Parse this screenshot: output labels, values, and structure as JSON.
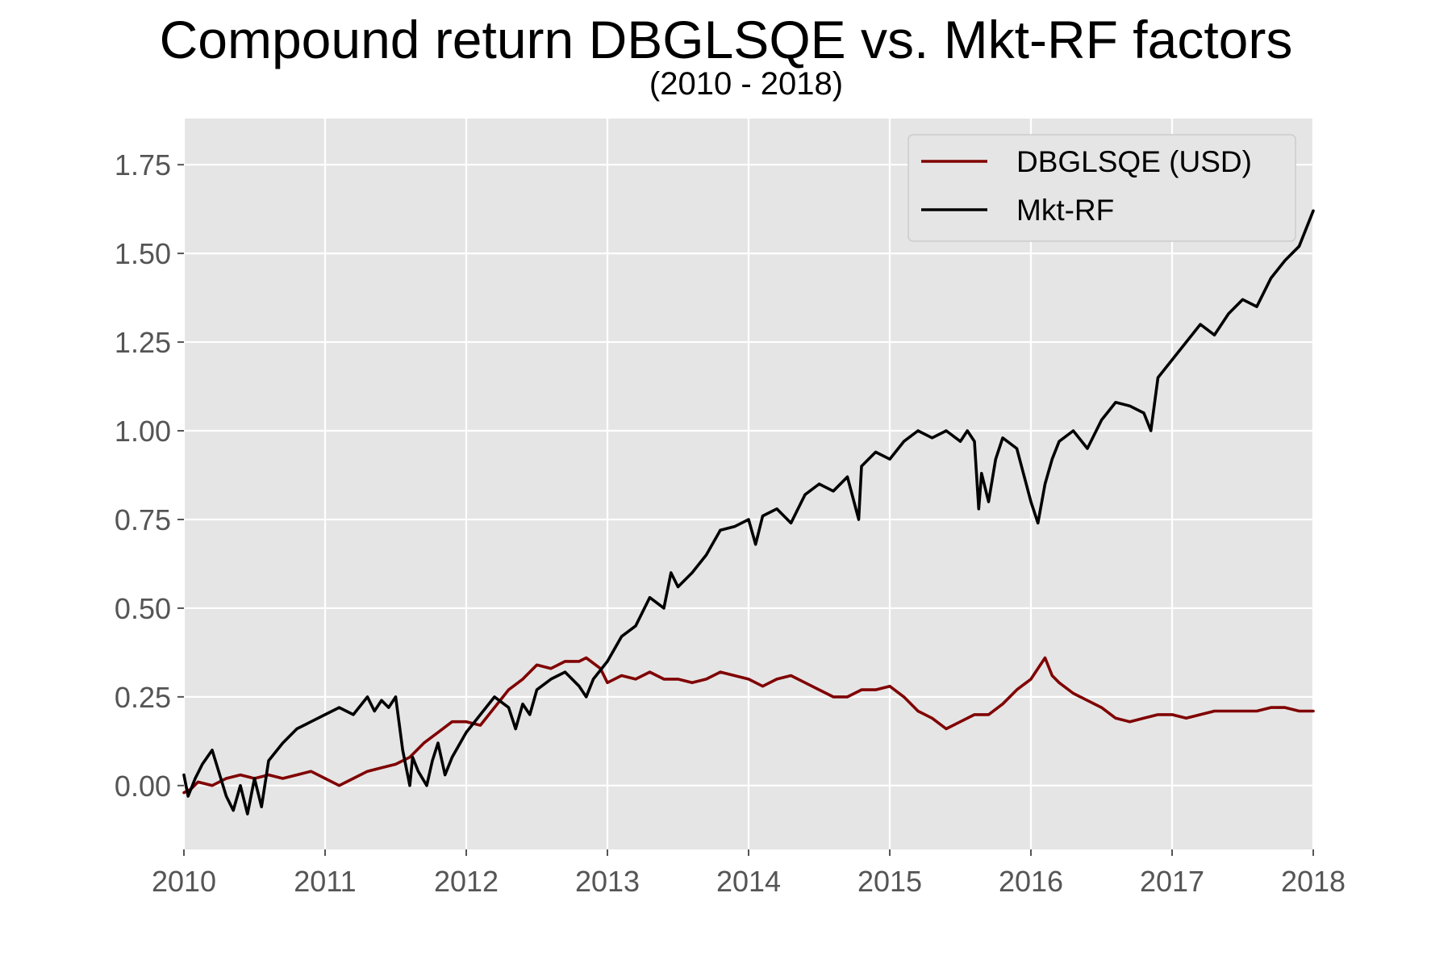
{
  "chart_data": {
    "type": "line",
    "title": "Compound return DBGLSQE vs. Mkt-RF factors",
    "subtitle": "(2010 - 2018)",
    "xlabel": "",
    "ylabel": "",
    "xlim": [
      2010,
      2018
    ],
    "ylim": [
      -0.18,
      1.88
    ],
    "x_ticks": [
      2010,
      2011,
      2012,
      2013,
      2014,
      2015,
      2016,
      2017,
      2018
    ],
    "x_tick_labels": [
      "2010",
      "2011",
      "2012",
      "2013",
      "2014",
      "2015",
      "2016",
      "2017",
      "2018"
    ],
    "y_ticks": [
      0.0,
      0.25,
      0.5,
      0.75,
      1.0,
      1.25,
      1.5,
      1.75
    ],
    "y_tick_labels": [
      "0.00",
      "0.25",
      "0.50",
      "0.75",
      "1.00",
      "1.25",
      "1.50",
      "1.75"
    ],
    "grid": true,
    "legend_position": "top-right",
    "colors": {
      "plot_background": "#e5e5e5",
      "grid": "#ffffff",
      "tick_label": "#555555",
      "legend_background": "#e5e5e5",
      "legend_border": "#cccccc"
    },
    "series": [
      {
        "name": "DBGLSQE (USD)",
        "color": "#800000",
        "x": [
          2010.0,
          2010.05,
          2010.1,
          2010.2,
          2010.3,
          2010.4,
          2010.5,
          2010.6,
          2010.7,
          2010.8,
          2010.9,
          2011.0,
          2011.1,
          2011.2,
          2011.3,
          2011.4,
          2011.5,
          2011.6,
          2011.7,
          2011.8,
          2011.9,
          2012.0,
          2012.1,
          2012.2,
          2012.3,
          2012.4,
          2012.5,
          2012.6,
          2012.7,
          2012.8,
          2012.85,
          2012.95,
          2013.0,
          2013.1,
          2013.2,
          2013.3,
          2013.4,
          2013.5,
          2013.6,
          2013.7,
          2013.8,
          2013.9,
          2014.0,
          2014.1,
          2014.2,
          2014.3,
          2014.4,
          2014.5,
          2014.6,
          2014.7,
          2014.8,
          2014.9,
          2015.0,
          2015.1,
          2015.2,
          2015.3,
          2015.4,
          2015.5,
          2015.6,
          2015.7,
          2015.8,
          2015.9,
          2016.0,
          2016.05,
          2016.1,
          2016.15,
          2016.2,
          2016.3,
          2016.4,
          2016.5,
          2016.6,
          2016.7,
          2016.8,
          2016.9,
          2017.0,
          2017.1,
          2017.2,
          2017.3,
          2017.4,
          2017.5,
          2017.6,
          2017.7,
          2017.8,
          2017.9,
          2018.0
        ],
        "y": [
          -0.02,
          -0.01,
          0.01,
          0.0,
          0.02,
          0.03,
          0.02,
          0.03,
          0.02,
          0.03,
          0.04,
          0.02,
          0.0,
          0.02,
          0.04,
          0.05,
          0.06,
          0.08,
          0.12,
          0.15,
          0.18,
          0.18,
          0.17,
          0.22,
          0.27,
          0.3,
          0.34,
          0.33,
          0.35,
          0.35,
          0.36,
          0.33,
          0.29,
          0.31,
          0.3,
          0.32,
          0.3,
          0.3,
          0.29,
          0.3,
          0.32,
          0.31,
          0.3,
          0.28,
          0.3,
          0.31,
          0.29,
          0.27,
          0.25,
          0.25,
          0.27,
          0.27,
          0.28,
          0.25,
          0.21,
          0.19,
          0.16,
          0.18,
          0.2,
          0.2,
          0.23,
          0.27,
          0.3,
          0.33,
          0.36,
          0.31,
          0.29,
          0.26,
          0.24,
          0.22,
          0.19,
          0.18,
          0.19,
          0.2,
          0.2,
          0.19,
          0.2,
          0.21,
          0.21,
          0.21,
          0.21,
          0.22,
          0.22,
          0.21,
          0.21
        ]
      },
      {
        "name": "Mkt-RF",
        "color": "#000000",
        "x": [
          2010.0,
          2010.03,
          2010.08,
          2010.13,
          2010.2,
          2010.3,
          2010.35,
          2010.4,
          2010.45,
          2010.5,
          2010.55,
          2010.6,
          2010.7,
          2010.8,
          2010.9,
          2011.0,
          2011.1,
          2011.2,
          2011.3,
          2011.35,
          2011.4,
          2011.45,
          2011.5,
          2011.55,
          2011.6,
          2011.62,
          2011.66,
          2011.72,
          2011.76,
          2011.8,
          2011.85,
          2011.9,
          2012.0,
          2012.1,
          2012.2,
          2012.3,
          2012.35,
          2012.4,
          2012.45,
          2012.5,
          2012.6,
          2012.7,
          2012.8,
          2012.85,
          2012.9,
          2013.0,
          2013.1,
          2013.2,
          2013.3,
          2013.4,
          2013.45,
          2013.5,
          2013.6,
          2013.7,
          2013.8,
          2013.9,
          2014.0,
          2014.05,
          2014.1,
          2014.2,
          2014.3,
          2014.4,
          2014.5,
          2014.6,
          2014.7,
          2014.78,
          2014.8,
          2014.9,
          2015.0,
          2015.1,
          2015.2,
          2015.3,
          2015.4,
          2015.5,
          2015.55,
          2015.6,
          2015.63,
          2015.65,
          2015.7,
          2015.75,
          2015.8,
          2015.9,
          2016.0,
          2016.05,
          2016.1,
          2016.15,
          2016.2,
          2016.3,
          2016.4,
          2016.5,
          2016.6,
          2016.7,
          2016.8,
          2016.85,
          2016.9,
          2017.0,
          2017.1,
          2017.2,
          2017.3,
          2017.4,
          2017.5,
          2017.6,
          2017.7,
          2017.8,
          2017.9,
          2018.0
        ],
        "y": [
          0.03,
          -0.03,
          0.02,
          0.06,
          0.1,
          -0.03,
          -0.07,
          0.0,
          -0.08,
          0.02,
          -0.06,
          0.07,
          0.12,
          0.16,
          0.18,
          0.2,
          0.22,
          0.2,
          0.25,
          0.21,
          0.24,
          0.22,
          0.25,
          0.1,
          0.0,
          0.08,
          0.04,
          0.0,
          0.07,
          0.12,
          0.03,
          0.08,
          0.15,
          0.2,
          0.25,
          0.22,
          0.16,
          0.23,
          0.2,
          0.27,
          0.3,
          0.32,
          0.28,
          0.25,
          0.3,
          0.35,
          0.42,
          0.45,
          0.53,
          0.5,
          0.6,
          0.56,
          0.6,
          0.65,
          0.72,
          0.73,
          0.75,
          0.68,
          0.76,
          0.78,
          0.74,
          0.82,
          0.85,
          0.83,
          0.87,
          0.75,
          0.9,
          0.94,
          0.92,
          0.97,
          1.0,
          0.98,
          1.0,
          0.97,
          1.0,
          0.97,
          0.78,
          0.88,
          0.8,
          0.92,
          0.98,
          0.95,
          0.8,
          0.74,
          0.85,
          0.92,
          0.97,
          1.0,
          0.95,
          1.03,
          1.08,
          1.07,
          1.05,
          1.0,
          1.15,
          1.2,
          1.25,
          1.3,
          1.27,
          1.33,
          1.37,
          1.35,
          1.43,
          1.48,
          1.52,
          1.62
        ]
      }
    ]
  }
}
